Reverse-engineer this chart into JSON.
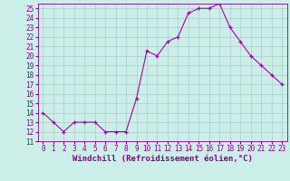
{
  "x": [
    0,
    1,
    2,
    3,
    4,
    5,
    6,
    7,
    8,
    9,
    10,
    11,
    12,
    13,
    14,
    15,
    16,
    17,
    18,
    19,
    20,
    21,
    22,
    23
  ],
  "y": [
    14,
    13,
    12,
    13,
    13,
    13,
    12,
    12,
    12,
    15.5,
    20.5,
    20,
    21.5,
    22,
    24.5,
    25,
    25,
    25.5,
    23,
    21.5,
    20,
    19,
    18,
    17
  ],
  "line_color": "#aa00aa",
  "marker_color": "#aa00aa",
  "bg_color": "#cceee8",
  "grid_color": "#aacccc",
  "xlabel": "Windchill (Refroidissement éolien,°C)",
  "xlim": [
    -0.5,
    23.5
  ],
  "ylim": [
    11,
    25.5
  ],
  "yticks": [
    11,
    12,
    13,
    14,
    15,
    16,
    17,
    18,
    19,
    20,
    21,
    22,
    23,
    24,
    25
  ],
  "xticks": [
    0,
    1,
    2,
    3,
    4,
    5,
    6,
    7,
    8,
    9,
    10,
    11,
    12,
    13,
    14,
    15,
    16,
    17,
    18,
    19,
    20,
    21,
    22,
    23
  ],
  "axis_fontsize": 6.5,
  "tick_fontsize": 5.5,
  "label_color": "#880088"
}
